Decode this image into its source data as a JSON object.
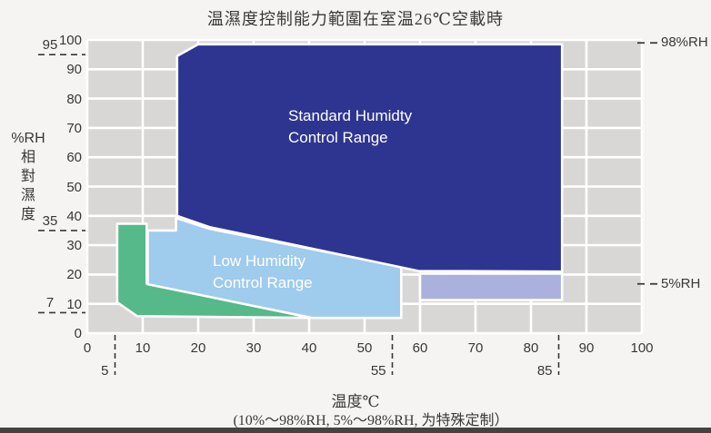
{
  "title": "温濕度控制能力範圍在室温26℃空載時",
  "y_axis": {
    "unit": "%RH",
    "unit_chars": [
      "相",
      "對",
      "濕",
      "度"
    ],
    "ticks": [
      0,
      10,
      20,
      30,
      40,
      50,
      60,
      70,
      80,
      90,
      100
    ],
    "special_ticks": [
      {
        "label": "95",
        "value": 95
      },
      {
        "label": "35",
        "value": 35
      },
      {
        "label": "7",
        "value": 7
      }
    ]
  },
  "x_axis": {
    "label": "温度℃",
    "ticks": [
      0,
      10,
      20,
      30,
      40,
      50,
      60,
      70,
      80,
      90,
      100
    ],
    "special_ticks": [
      {
        "label": "5",
        "value": 5
      },
      {
        "label": "55",
        "value": 55
      },
      {
        "label": "85",
        "value": 85
      }
    ]
  },
  "footnote": "(10%～98%RH, 5%～98%RH, 为特殊定制）",
  "colors": {
    "page_bg": "#f5f4f2",
    "plot_bg": "#d8d7d5",
    "grid": "#ffffff",
    "standard_blue": "#2e3590",
    "low_blue": "#9fcbed",
    "green": "#55b98a",
    "extended_lavender": "#abb0dc",
    "text": "#3a3836",
    "region_text": "#ffffff"
  },
  "chart_data": {
    "type": "area",
    "xlabel": "温度℃",
    "ylabel": "%RH 相對濕度",
    "xlim": [
      0,
      100
    ],
    "ylim": [
      0,
      100
    ],
    "grid_step": 10,
    "grid": "on",
    "annotations_right": [
      {
        "label": "98%RH",
        "rh": 99
      },
      {
        "label": "5%RH",
        "rh": 16.8
      }
    ],
    "regions": [
      {
        "name": "green-range",
        "color": "#55b98a",
        "label_lines": [],
        "temp_c": [
          5,
          40
        ],
        "rh_pct": [
          7,
          37
        ],
        "points": [
          [
            5.4,
            37.3
          ],
          [
            10.7,
            37.3
          ],
          [
            10.7,
            16.9
          ],
          [
            40.5,
            5.2
          ],
          [
            9,
            5.8
          ],
          [
            5.4,
            10.5
          ]
        ]
      },
      {
        "name": "low-humidity-range",
        "color": "#9fcbed",
        "label_lines": [
          "Low Humidity",
          "Control Range"
        ],
        "temp_c": [
          10,
          55
        ],
        "rh_pct": [
          5,
          40
        ],
        "points": [
          [
            10.9,
            35
          ],
          [
            16,
            35
          ],
          [
            16,
            39.3
          ],
          [
            22,
            35.6
          ],
          [
            56.6,
            22.6
          ],
          [
            56.6,
            5.2
          ],
          [
            40.5,
            5.2
          ],
          [
            10.9,
            16.7
          ]
        ]
      },
      {
        "name": "standard-humidity-range",
        "color": "#2e3590",
        "label_lines": [
          "Standard Humidty",
          "Control Range"
        ],
        "temp_c": [
          15,
          85
        ],
        "rh_pct": [
          20,
          98
        ],
        "points": [
          [
            16.2,
            40
          ],
          [
            16.2,
            94.5
          ],
          [
            20,
            98.5
          ],
          [
            85.6,
            98.5
          ],
          [
            85.6,
            21
          ],
          [
            59.7,
            21.2
          ],
          [
            22,
            36.2
          ]
        ]
      },
      {
        "name": "extended-range",
        "color": "#abb0dc",
        "label_lines": [],
        "temp_c": [
          60,
          85
        ],
        "rh_pct": [
          10,
          20
        ],
        "points": [
          [
            60,
            20.3
          ],
          [
            85.6,
            20.3
          ],
          [
            85.6,
            11.3
          ],
          [
            60,
            11.3
          ]
        ]
      }
    ]
  }
}
